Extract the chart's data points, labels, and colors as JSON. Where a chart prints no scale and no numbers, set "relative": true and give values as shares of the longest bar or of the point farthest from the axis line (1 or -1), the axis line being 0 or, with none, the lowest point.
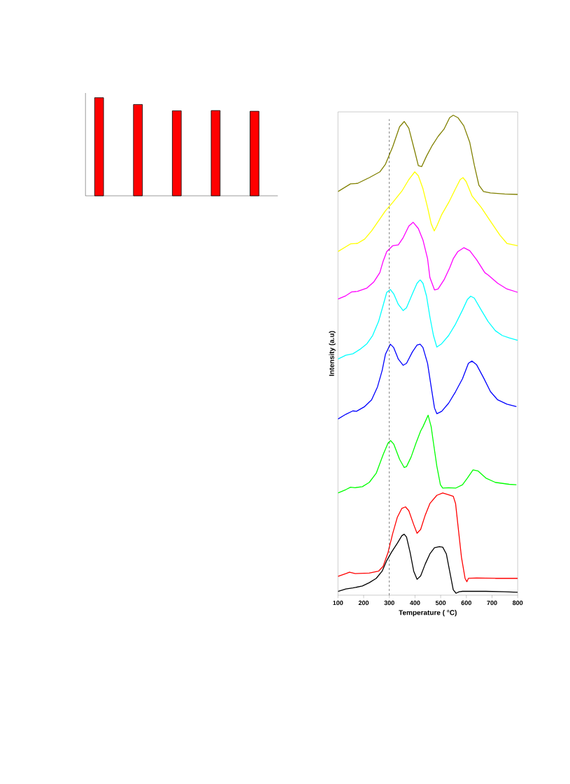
{
  "chart_data": [
    {
      "type": "bar",
      "relative": true,
      "categories": [
        null,
        null,
        null,
        null,
        null
      ],
      "values": [
        1,
        0.931,
        0.867,
        0.869,
        0.862
      ],
      "color": "#ff0000",
      "tick_labels": false
    },
    {
      "type": "line",
      "relative": true,
      "xlabel": "Temperature ( °C)",
      "ylabel": "Intensity (a.u)",
      "xlim": [
        100,
        800
      ],
      "xticks": [
        100,
        200,
        300,
        400,
        500,
        600,
        700,
        800
      ],
      "tick_labels": "x",
      "line_style": "solid",
      "ref_lines": [
        {
          "axis": "x",
          "value": 300,
          "color": "#000000",
          "line_style": "dashed"
        }
      ],
      "series": [
        {
          "color": "#808000",
          "x": [
            100,
            149,
            176,
            222,
            263,
            285,
            313,
            340,
            358,
            376,
            399,
            413,
            426,
            445,
            467,
            490,
            513,
            535,
            549,
            567,
            590,
            613,
            631,
            649,
            667,
            694,
            749,
            800
          ],
          "values": [
            0.841,
            0.857,
            0.858,
            0.87,
            0.882,
            0.898,
            0.934,
            0.976,
            0.987,
            0.973,
            0.925,
            0.895,
            0.893,
            0.915,
            0.937,
            0.956,
            0.971,
            0.995,
            1.0,
            0.995,
            0.978,
            0.944,
            0.896,
            0.854,
            0.841,
            0.838,
            0.836,
            0.835
          ]
        },
        {
          "color": "#ffff00",
          "x": [
            100,
            149,
            176,
            204,
            231,
            263,
            285,
            313,
            349,
            376,
            399,
            413,
            431,
            449,
            463,
            475,
            485,
            504,
            531,
            558,
            576,
            587,
            599,
            622,
            658,
            694,
            731,
            758,
            800
          ],
          "values": [
            0.716,
            0.732,
            0.733,
            0.742,
            0.759,
            0.784,
            0.801,
            0.818,
            0.842,
            0.866,
            0.882,
            0.874,
            0.847,
            0.808,
            0.774,
            0.759,
            0.769,
            0.793,
            0.818,
            0.847,
            0.866,
            0.87,
            0.862,
            0.832,
            0.808,
            0.779,
            0.75,
            0.733,
            0.728
          ]
        },
        {
          "color": "#ff00ff",
          "x": [
            100,
            131,
            154,
            176,
            213,
            240,
            263,
            276,
            290,
            313,
            335,
            354,
            376,
            393,
            413,
            431,
            449,
            458,
            476,
            490,
            513,
            535,
            549,
            567,
            590,
            613,
            640,
            672,
            685,
            722,
            758,
            800
          ],
          "values": [
            0.617,
            0.624,
            0.632,
            0.633,
            0.64,
            0.653,
            0.672,
            0.696,
            0.716,
            0.728,
            0.73,
            0.745,
            0.769,
            0.777,
            0.764,
            0.74,
            0.701,
            0.662,
            0.636,
            0.638,
            0.657,
            0.682,
            0.701,
            0.716,
            0.724,
            0.718,
            0.699,
            0.672,
            0.667,
            0.65,
            0.638,
            0.631
          ]
        },
        {
          "color": "#00ffff",
          "x": [
            100,
            131,
            158,
            185,
            213,
            235,
            258,
            276,
            290,
            304,
            317,
            335,
            354,
            367,
            390,
            408,
            420,
            431,
            445,
            458,
            472,
            485,
            504,
            531,
            558,
            585,
            604,
            617,
            631,
            658,
            685,
            713,
            740,
            767,
            800
          ],
          "values": [
            0.492,
            0.5,
            0.503,
            0.512,
            0.524,
            0.541,
            0.57,
            0.604,
            0.631,
            0.637,
            0.628,
            0.606,
            0.593,
            0.599,
            0.628,
            0.65,
            0.657,
            0.65,
            0.623,
            0.58,
            0.541,
            0.517,
            0.524,
            0.541,
            0.565,
            0.594,
            0.616,
            0.623,
            0.619,
            0.594,
            0.57,
            0.551,
            0.541,
            0.536,
            0.531
          ]
        },
        {
          "color": "#0000ff",
          "x": [
            100,
            131,
            158,
            172,
            204,
            231,
            254,
            272,
            285,
            304,
            317,
            335,
            354,
            367,
            390,
            408,
            420,
            431,
            449,
            463,
            476,
            485,
            504,
            531,
            558,
            585,
            608,
            622,
            640,
            667,
            694,
            722,
            758,
            795
          ],
          "values": [
            0.367,
            0.377,
            0.384,
            0.383,
            0.393,
            0.407,
            0.434,
            0.468,
            0.502,
            0.523,
            0.516,
            0.492,
            0.479,
            0.483,
            0.507,
            0.521,
            0.523,
            0.516,
            0.483,
            0.434,
            0.39,
            0.378,
            0.383,
            0.4,
            0.424,
            0.451,
            0.483,
            0.488,
            0.48,
            0.453,
            0.424,
            0.407,
            0.398,
            0.393
          ]
        },
        {
          "color": "#00ff00",
          "x": [
            100,
            131,
            149,
            167,
            195,
            222,
            249,
            276,
            295,
            305,
            317,
            340,
            358,
            367,
            385,
            404,
            422,
            431,
            451,
            463,
            472,
            485,
            499,
            508,
            531,
            558,
            585,
            604,
            626,
            645,
            676,
            713,
            767,
            795
          ],
          "values": [
            0.213,
            0.22,
            0.225,
            0.224,
            0.226,
            0.235,
            0.254,
            0.293,
            0.317,
            0.322,
            0.315,
            0.283,
            0.266,
            0.268,
            0.288,
            0.317,
            0.342,
            0.351,
            0.375,
            0.351,
            0.317,
            0.269,
            0.23,
            0.223,
            0.224,
            0.223,
            0.23,
            0.244,
            0.261,
            0.259,
            0.244,
            0.235,
            0.231,
            0.23
          ]
        },
        {
          "color": "#ff0000",
          "x": [
            100,
            131,
            145,
            167,
            222,
            258,
            276,
            295,
            313,
            331,
            349,
            363,
            376,
            395,
            408,
            422,
            440,
            458,
            485,
            508,
            526,
            549,
            558,
            567,
            581,
            595,
            602,
            608,
            640,
            713,
            800
          ],
          "values": [
            0.039,
            0.045,
            0.048,
            0.045,
            0.046,
            0.05,
            0.06,
            0.089,
            0.128,
            0.162,
            0.181,
            0.184,
            0.176,
            0.147,
            0.129,
            0.137,
            0.167,
            0.191,
            0.208,
            0.213,
            0.21,
            0.206,
            0.191,
            0.147,
            0.079,
            0.035,
            0.028,
            0.035,
            0.036,
            0.035,
            0.035
          ]
        },
        {
          "color": "#000000",
          "x": [
            100,
            131,
            158,
            195,
            222,
            249,
            272,
            290,
            308,
            331,
            349,
            358,
            367,
            381,
            395,
            408,
            422,
            440,
            458,
            476,
            495,
            508,
            522,
            535,
            549,
            560,
            572,
            585,
            676,
            749,
            800
          ],
          "values": [
            0.008,
            0.013,
            0.015,
            0.019,
            0.026,
            0.035,
            0.05,
            0.072,
            0.089,
            0.108,
            0.124,
            0.127,
            0.121,
            0.089,
            0.05,
            0.033,
            0.04,
            0.065,
            0.086,
            0.099,
            0.101,
            0.1,
            0.086,
            0.05,
            0.011,
            0.004,
            0.007,
            0.008,
            0.008,
            0.007,
            0.006
          ]
        }
      ]
    }
  ]
}
